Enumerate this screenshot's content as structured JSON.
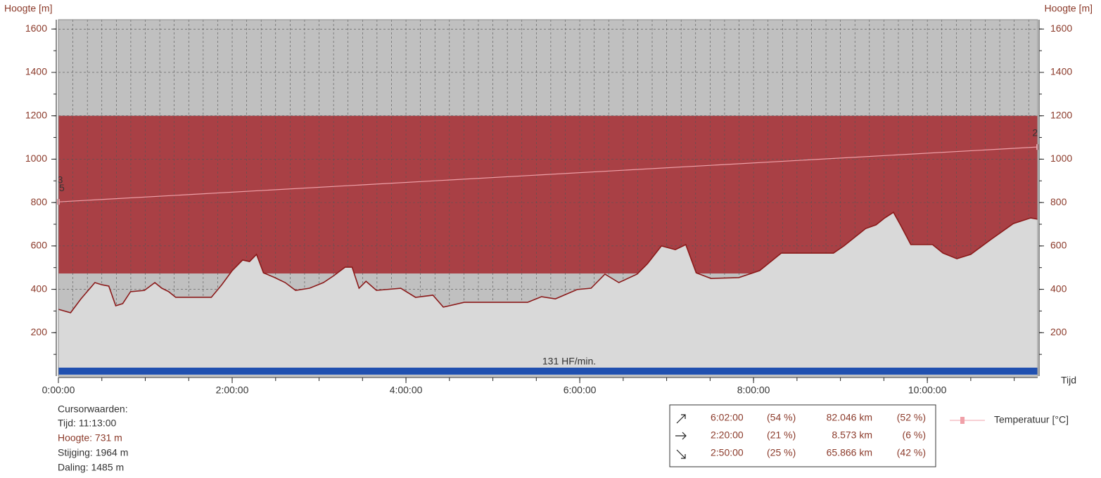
{
  "chart_data": {
    "type": "area",
    "ylabel": "Hoogte [m]",
    "y2label": "Hoogte [m]",
    "xlabel": "Tijd",
    "xlim": [
      0,
      11.27
    ],
    "xticks": [
      {
        "value": 0,
        "label": "0:00:00"
      },
      {
        "value": 2,
        "label": "2:00:00"
      },
      {
        "value": 4,
        "label": "4:00:00"
      },
      {
        "value": 6,
        "label": "6:00:00"
      },
      {
        "value": 8,
        "label": "8:00:00"
      },
      {
        "value": 10,
        "label": "10:00:00"
      }
    ],
    "ylim": [
      0,
      1643
    ],
    "yticks": [
      200,
      400,
      600,
      800,
      1000,
      1200,
      1400,
      1600
    ],
    "y2lim": [
      0,
      1643
    ],
    "y2ticks": [
      200,
      400,
      600,
      800,
      1000,
      1200,
      1400,
      1600
    ],
    "grid": true,
    "band": {
      "from": 473,
      "to": 1200,
      "color": "#a94045"
    },
    "hr_label": "131 HF/min.",
    "series": [
      {
        "name": "Hoogte",
        "color": "#8b1a1a",
        "fill": "#d9d9d9",
        "x": [
          0,
          0.14,
          0.26,
          0.42,
          0.5,
          0.58,
          0.66,
          0.74,
          0.83,
          0.99,
          1.11,
          1.19,
          1.27,
          1.35,
          1.76,
          1.88,
          2.0,
          2.12,
          2.2,
          2.28,
          2.36,
          2.49,
          2.61,
          2.73,
          2.89,
          3.05,
          3.17,
          3.3,
          3.38,
          3.46,
          3.54,
          3.66,
          3.94,
          4.11,
          4.31,
          4.43,
          4.67,
          5.0,
          5.4,
          5.56,
          5.72,
          5.97,
          6.13,
          6.29,
          6.45,
          6.66,
          6.78,
          6.94,
          7.1,
          7.22,
          7.34,
          7.51,
          7.83,
          8.07,
          8.32,
          8.92,
          9.04,
          9.29,
          9.41,
          9.51,
          9.61,
          9.69,
          9.81,
          10.06,
          10.18,
          10.34,
          10.5,
          10.74,
          10.99,
          11.19,
          11.27
        ],
        "values": [
          308,
          292,
          356,
          431,
          421,
          415,
          324,
          334,
          389,
          395,
          431,
          405,
          389,
          363,
          363,
          421,
          486,
          535,
          528,
          561,
          476,
          454,
          431,
          395,
          405,
          431,
          463,
          502,
          502,
          405,
          437,
          395,
          405,
          363,
          373,
          318,
          340,
          340,
          340,
          366,
          356,
          399,
          405,
          470,
          431,
          470,
          518,
          600,
          583,
          606,
          476,
          450,
          454,
          486,
          567,
          567,
          600,
          680,
          697,
          729,
          755,
          697,
          606,
          606,
          567,
          541,
          561,
          632,
          703,
          729,
          723
        ]
      },
      {
        "name": "Temperatuur [°C]",
        "color": "#f0a0a8",
        "x": [
          0,
          11.27
        ],
        "values": [
          803,
          1056
        ]
      }
    ],
    "annotations": [
      {
        "text": "3",
        "x": 0.02,
        "y": 901
      },
      {
        "text": "5",
        "x": 0.04,
        "y": 865
      },
      {
        "text": "2",
        "x": 11.24,
        "y": 1118
      }
    ],
    "cursor": {
      "title": "Cursorwaarden:",
      "lines": [
        "Tijd: 11:13:00",
        "Hoogte: 731 m",
        "Stijging: 1964 m",
        "Daling: 1485 m"
      ]
    },
    "stats": [
      [
        "6:02:00",
        "(54 %)",
        "82.046 km",
        "(52 %)"
      ],
      [
        "2:20:00",
        "(21 %)",
        "8.573 km",
        "(6 %)"
      ],
      [
        "2:50:00",
        "(25 %)",
        "65.866 km",
        "(42 %)"
      ]
    ]
  }
}
